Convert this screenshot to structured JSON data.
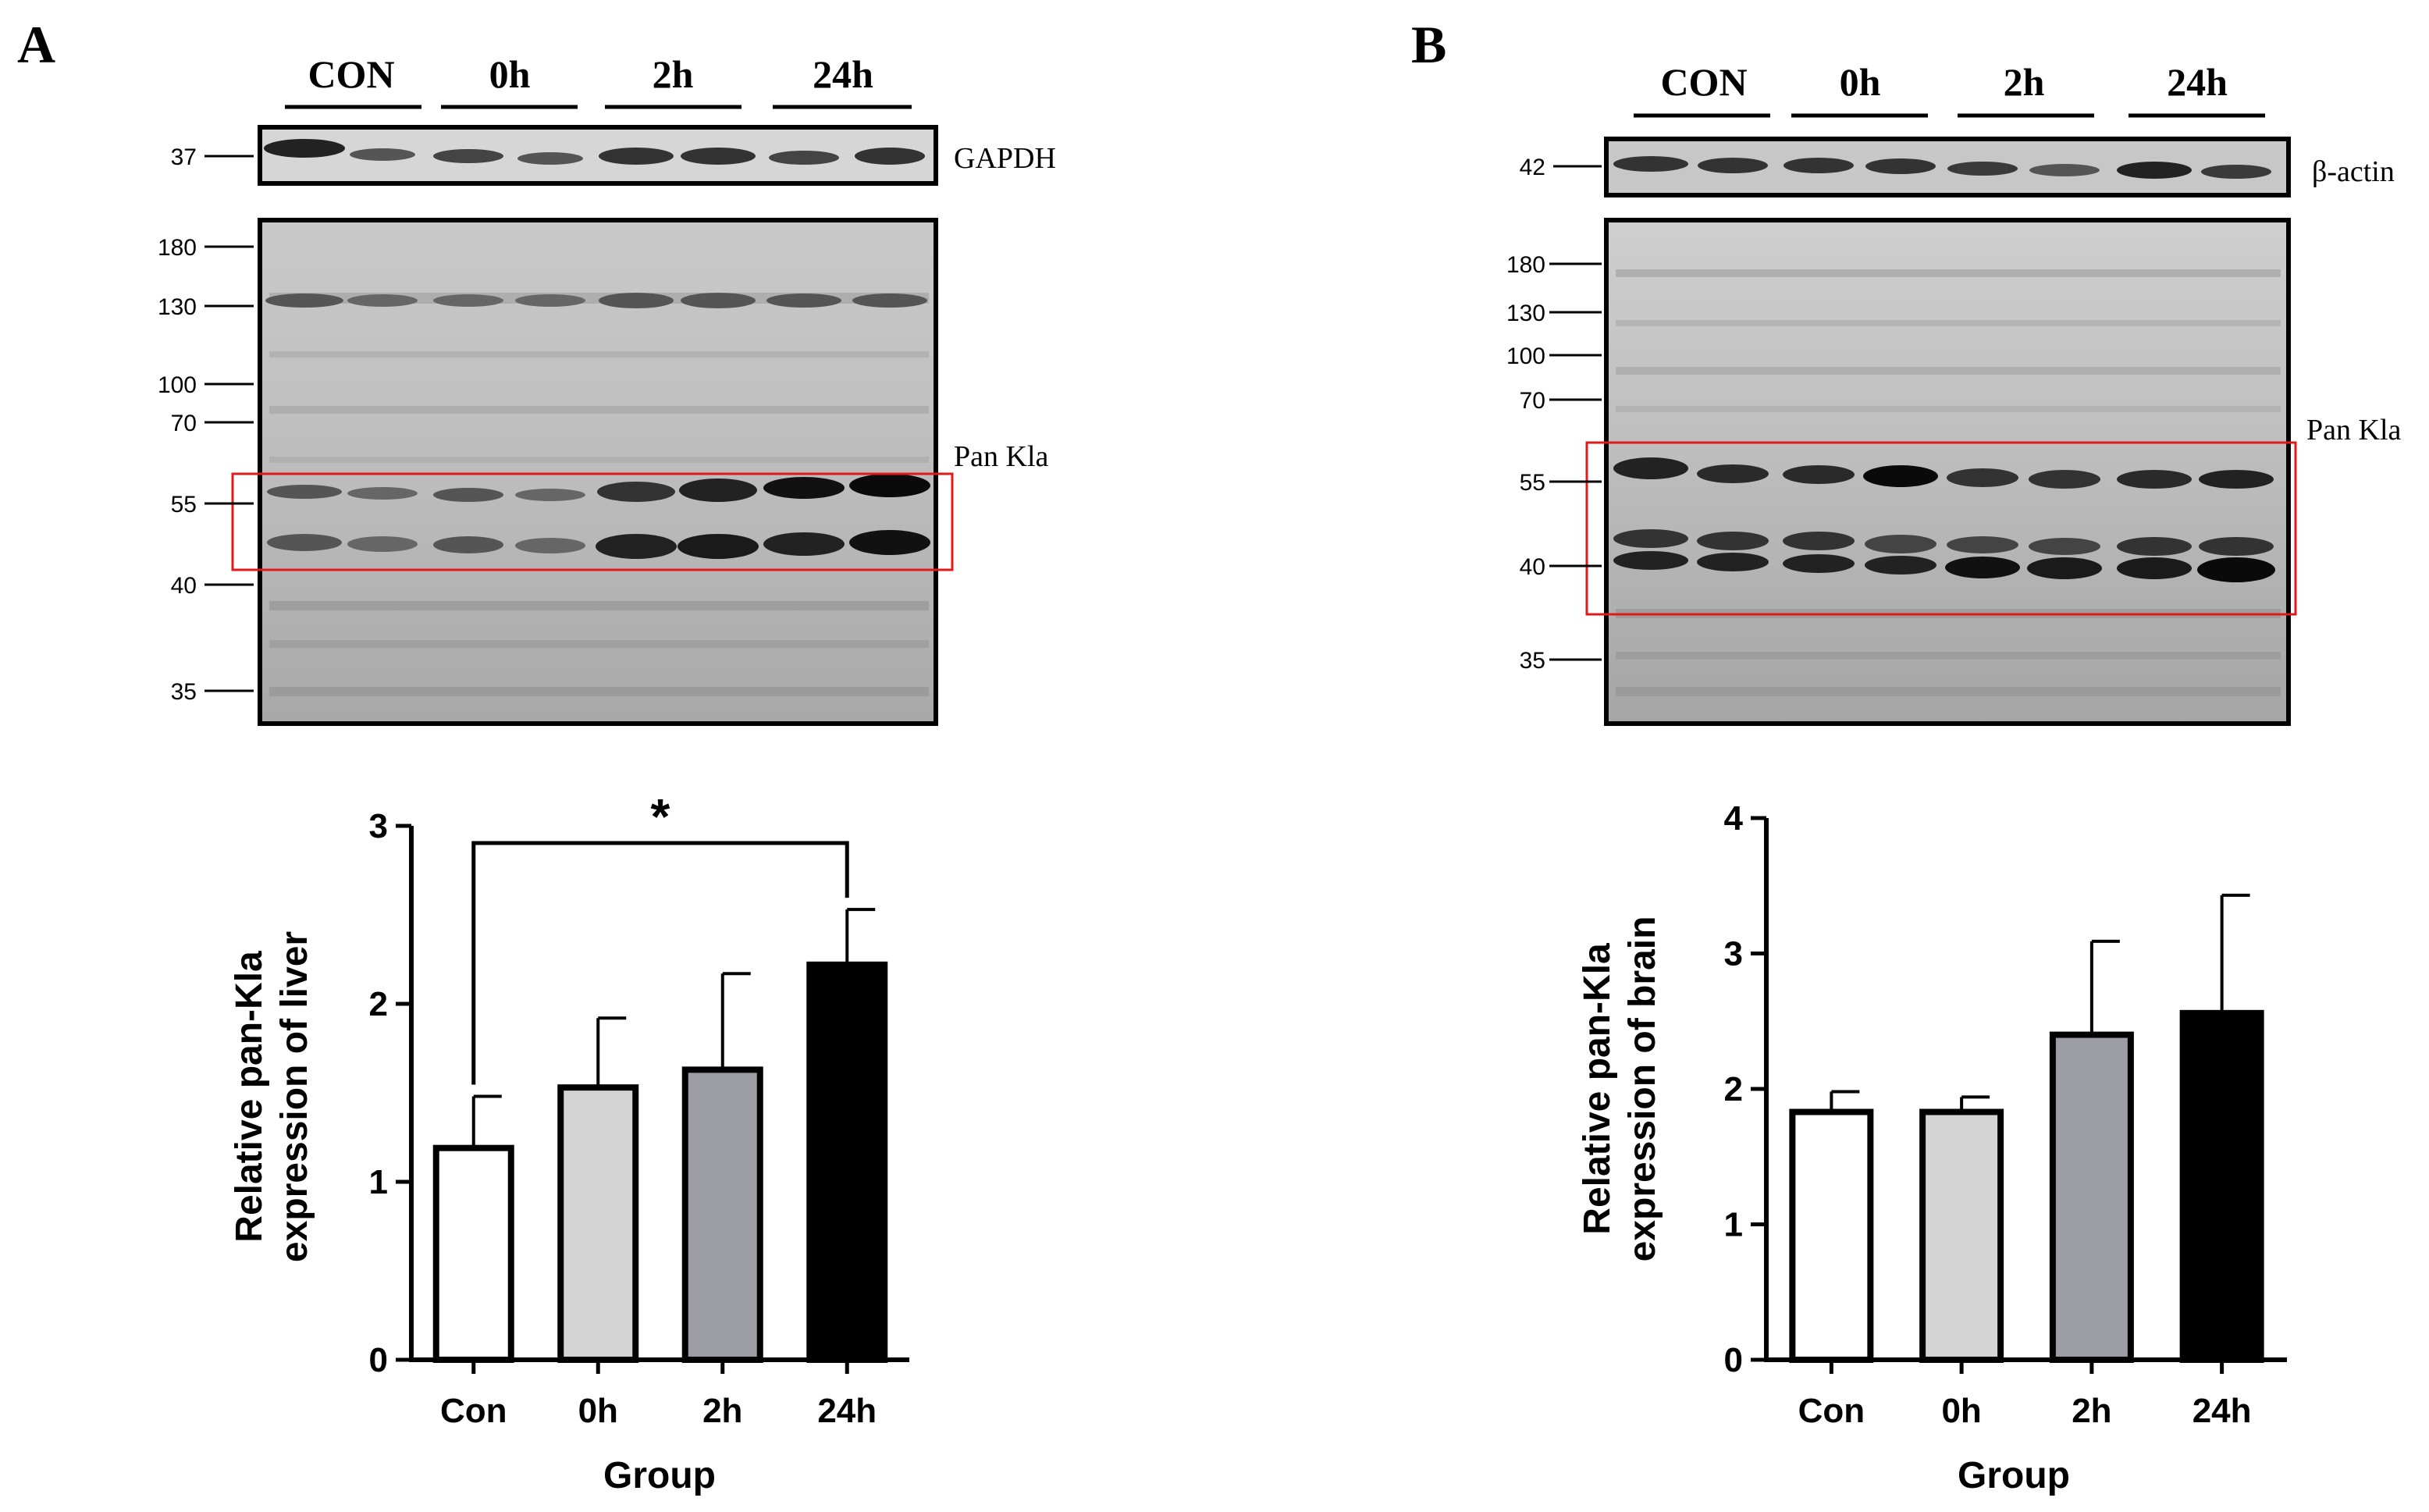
{
  "panels": [
    {
      "letter": "A",
      "blot": {
        "lanes": [
          "CON",
          "0h",
          "2h",
          "24h"
        ],
        "loading_control": "GAPDH",
        "loading_mw": "37",
        "target": "Pan Kla",
        "mw_markers": [
          "180",
          "130",
          "100",
          "70",
          "55",
          "40",
          "35"
        ]
      }
    },
    {
      "letter": "B",
      "blot": {
        "lanes": [
          "CON",
          "0h",
          "2h",
          "24h"
        ],
        "loading_control": "β-actin",
        "loading_mw": "42",
        "target": "Pan Kla",
        "mw_markers": [
          "180",
          "130",
          "100",
          "70",
          "55",
          "40",
          "35"
        ]
      }
    }
  ],
  "chart_data": [
    {
      "type": "bar",
      "categories": [
        "Con",
        "0h",
        "2h",
        "24h"
      ],
      "values": [
        1.19,
        1.53,
        1.63,
        2.22
      ],
      "errors": [
        0.29,
        0.39,
        0.54,
        0.31
      ],
      "colors": [
        "#ffffff",
        "#d4d4d4",
        "#9c9ca4",
        "#000000"
      ],
      "xlabel": "Group",
      "ylabel": [
        "Relative pan-Kla",
        "expression of liver"
      ],
      "ylim": [
        0,
        3
      ],
      "yticks": [
        "0",
        "1",
        "2",
        "3"
      ],
      "significance": {
        "from": "Con",
        "to": "24h",
        "label": "*"
      }
    },
    {
      "type": "bar",
      "categories": [
        "Con",
        "0h",
        "2h",
        "24h"
      ],
      "values": [
        1.83,
        1.83,
        2.4,
        2.56
      ],
      "errors": [
        0.15,
        0.11,
        0.69,
        0.87
      ],
      "colors": [
        "#ffffff",
        "#d4d4d4",
        "#9c9ca4",
        "#000000"
      ],
      "xlabel": "Group",
      "ylabel": [
        "Relative pan-Kla",
        "expression of brain"
      ],
      "ylim": [
        0,
        4
      ],
      "yticks": [
        "0",
        "1",
        "2",
        "3",
        "4"
      ]
    }
  ]
}
